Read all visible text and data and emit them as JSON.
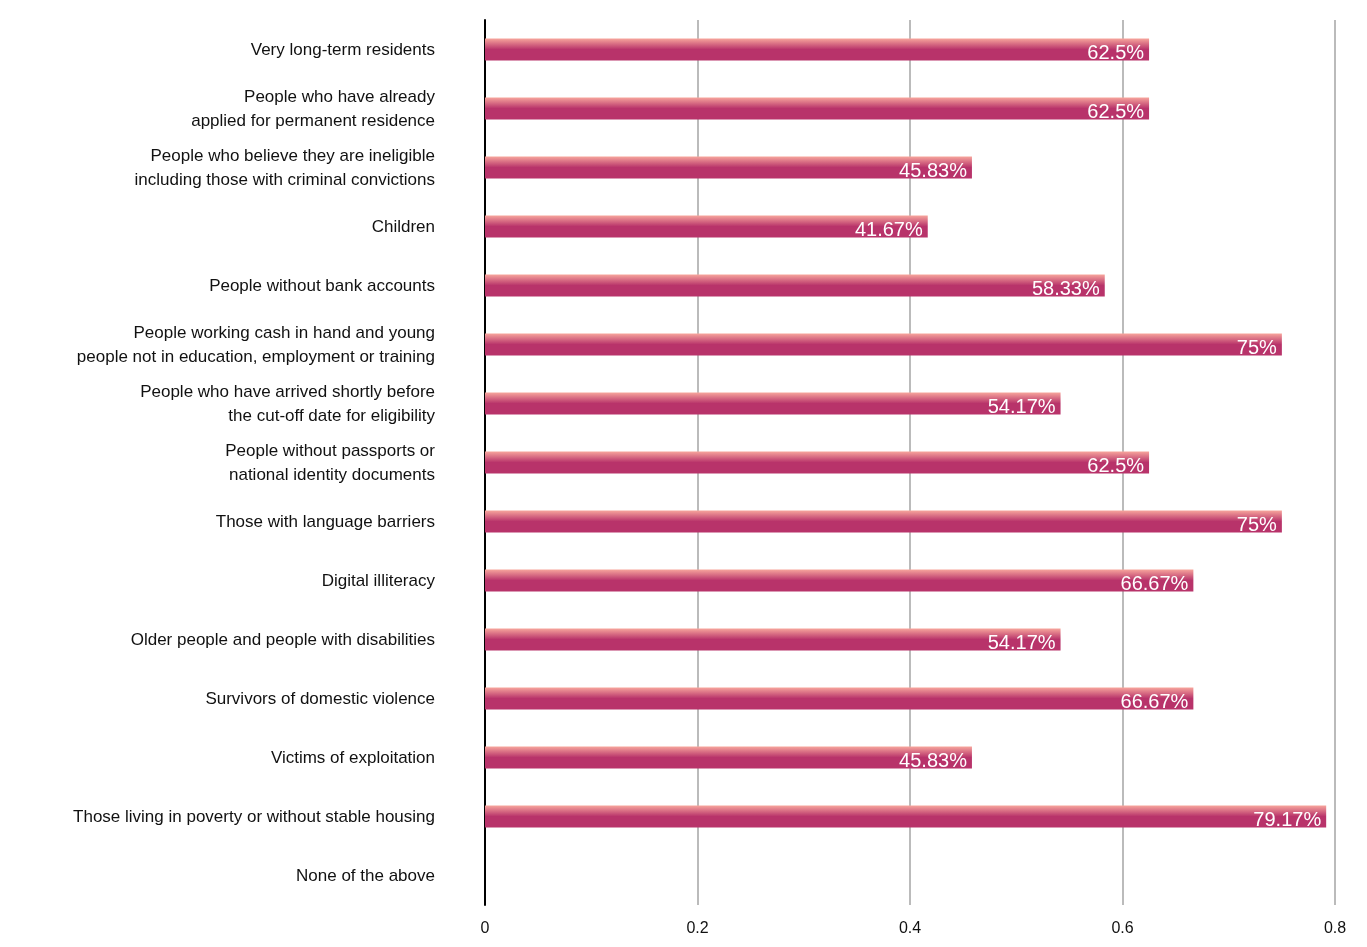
{
  "chart_data": {
    "type": "bar",
    "orientation": "horizontal",
    "categories": [
      "Very long-term residents",
      "People who have already\napplied for permanent residence",
      "People who believe they are ineligible\nincluding those with criminal convictions",
      "Children",
      "People without bank accounts",
      "People working cash in hand and young\npeople not in education, employment or training",
      "People who have arrived shortly before\nthe cut-off date for eligibility",
      "People without passports or\nnational identity documents",
      "Those with language barriers",
      "Digital illiteracy",
      "Older people and people with disabilities",
      "Survivors of domestic violence",
      "Victims of exploitation",
      "Those living in poverty or without stable housing",
      "None of the above"
    ],
    "values": [
      0.625,
      0.625,
      0.4583,
      0.4167,
      0.5833,
      0.75,
      0.5417,
      0.625,
      0.75,
      0.6667,
      0.5417,
      0.6667,
      0.4583,
      0.7917,
      0
    ],
    "value_labels": [
      "62.5%",
      "62.5%",
      "45.83%",
      "41.67%",
      "58.33%",
      "75%",
      "54.17%",
      "62.5%",
      "75%",
      "66.67%",
      "54.17%",
      "66.67%",
      "45.83%",
      "79.17%",
      null
    ],
    "color": "#b8336a",
    "xlim": [
      0,
      0.8
    ],
    "xticks": [
      0,
      0.2,
      0.4,
      0.6,
      0.8
    ],
    "grid": "x"
  }
}
